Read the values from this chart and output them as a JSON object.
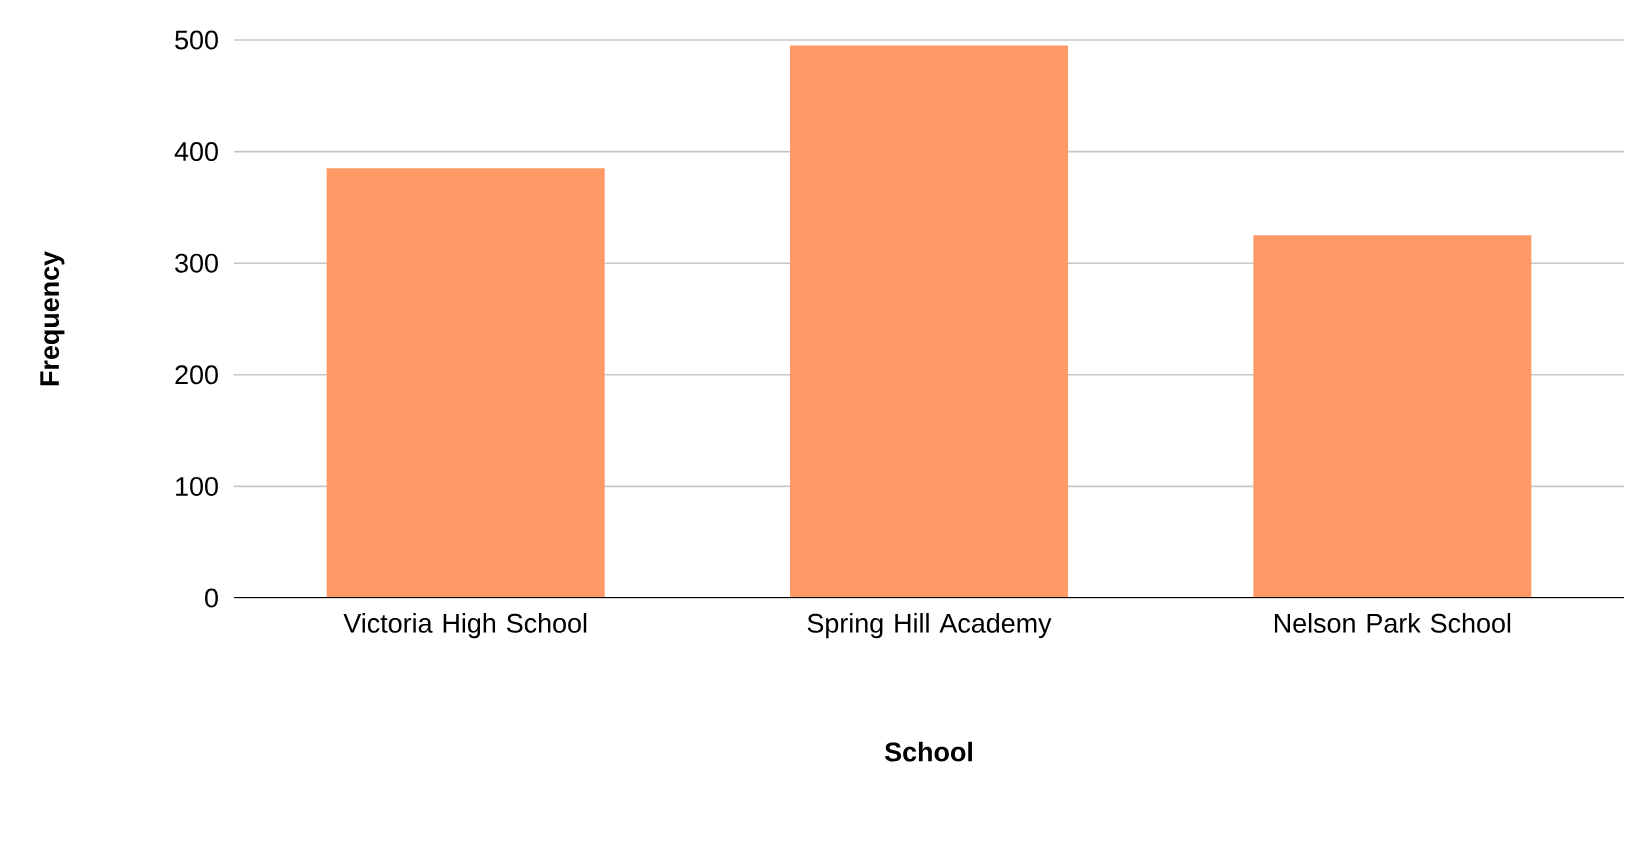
{
  "chart_data": {
    "type": "bar",
    "xlabel": "School",
    "ylabel": "Frequency",
    "categories": [
      "Victoria High School",
      "Spring Hill Academy",
      "Nelson Park School"
    ],
    "values": [
      385,
      495,
      325
    ],
    "color": "#ff9966",
    "ylim": [
      0,
      500
    ],
    "yticks": [
      0,
      100,
      200,
      300,
      400,
      500
    ],
    "grid": "y"
  }
}
